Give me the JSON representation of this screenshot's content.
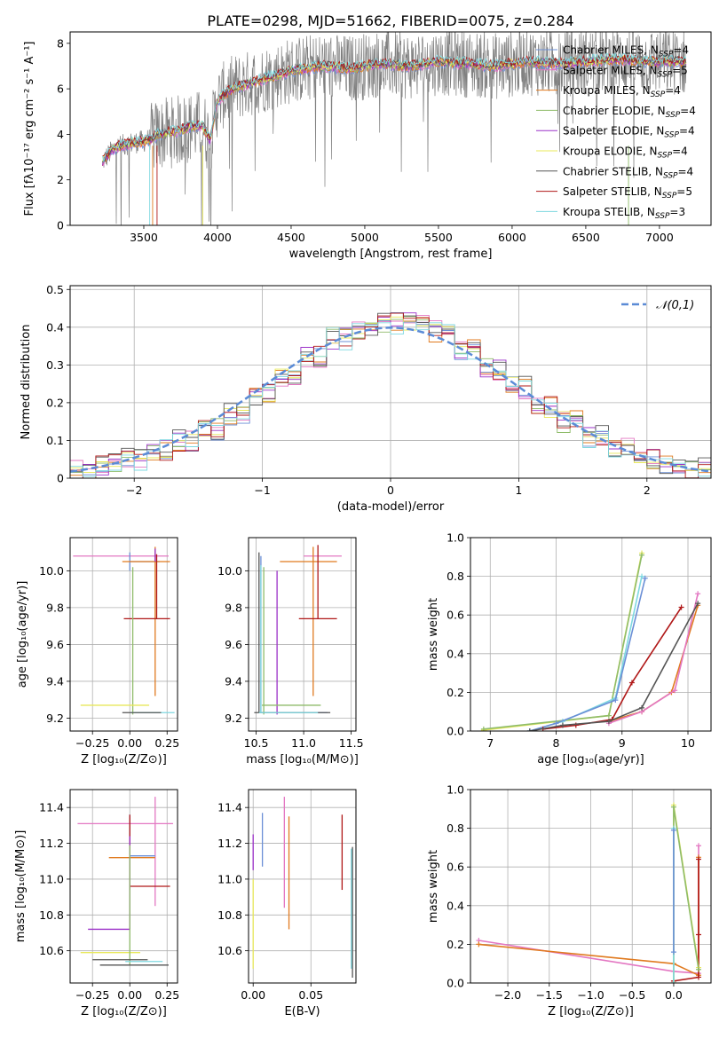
{
  "figure": {
    "title": "PLATE=0298, MJD=51662, FIBERID=0075, z=0.284"
  },
  "series_styles": [
    {
      "name": "Chabrier MILES",
      "nssp": "4",
      "color": "#6b8fd6"
    },
    {
      "name": "Salpeter MILES",
      "nssp": "5",
      "color": "#e377c2"
    },
    {
      "name": "Kroupa MILES",
      "nssp": "4",
      "color": "#e07a1f"
    },
    {
      "name": "Chabrier ELODIE",
      "nssp": "4",
      "color": "#8fbc6a"
    },
    {
      "name": "Salpeter ELODIE",
      "nssp": "4",
      "color": "#9b30c8"
    },
    {
      "name": "Kroupa ELODIE",
      "nssp": "4",
      "color": "#e8e85a"
    },
    {
      "name": "Chabrier STELIB",
      "nssp": "4",
      "color": "#555555"
    },
    {
      "name": "Salpeter STELIB",
      "nssp": "5",
      "color": "#b01818"
    },
    {
      "name": "Kroupa STELIB",
      "nssp": "3",
      "color": "#7fd8e0"
    }
  ],
  "chart_data": [
    {
      "id": "spectrum",
      "type": "line",
      "xlabel": "wavelength [Angstrom, rest frame]",
      "ylabel": "Flux [fλ10⁻¹⁷ erg cm⁻² s⁻¹ A⁻¹]",
      "xlim": [
        3000,
        7350
      ],
      "ylim": [
        0,
        8.5
      ],
      "xticks": [
        3500,
        4000,
        4500,
        5000,
        5500,
        6000,
        6500,
        7000
      ],
      "yticks": [
        0,
        2,
        4,
        6,
        8
      ],
      "data_color": "#808080",
      "model_continuum": {
        "x": [
          3220,
          3300,
          3400,
          3500,
          3550,
          3600,
          3700,
          3800,
          3900,
          3950,
          4000,
          4100,
          4200,
          4300,
          4400,
          4500,
          4700,
          4900,
          5100,
          5300,
          5500,
          5700,
          5900,
          6100,
          6300,
          6500,
          6700,
          6900,
          7100
        ],
        "y": [
          2.8,
          3.4,
          3.6,
          3.7,
          3.8,
          4.0,
          4.1,
          4.3,
          4.4,
          3.7,
          5.5,
          6.0,
          6.2,
          6.4,
          6.6,
          6.8,
          7.0,
          6.9,
          7.1,
          7.0,
          7.2,
          7.1,
          7.0,
          7.2,
          7.1,
          7.2,
          7.3,
          7.2,
          7.2
        ]
      }
    },
    {
      "id": "residuals",
      "type": "step",
      "xlabel": "(data-model)/error",
      "ylabel": "Normed distribution",
      "xlim": [
        -2.5,
        2.5
      ],
      "ylim": [
        0,
        0.51
      ],
      "xticks": [
        -2,
        -1,
        0,
        1,
        2
      ],
      "yticks": [
        0.0,
        0.1,
        0.2,
        0.3,
        0.4,
        0.5
      ],
      "grid": true,
      "bin_centers": [
        -2.4,
        -2.2,
        -2.0,
        -1.8,
        -1.6,
        -1.4,
        -1.2,
        -1.0,
        -0.8,
        -0.6,
        -0.4,
        -0.2,
        0.0,
        0.2,
        0.4,
        0.6,
        0.8,
        1.0,
        1.2,
        1.4,
        1.6,
        1.8,
        2.0,
        2.2,
        2.4
      ],
      "base_values": [
        0.02,
        0.035,
        0.05,
        0.075,
        0.1,
        0.13,
        0.17,
        0.22,
        0.27,
        0.32,
        0.37,
        0.39,
        0.41,
        0.42,
        0.39,
        0.34,
        0.29,
        0.24,
        0.19,
        0.15,
        0.11,
        0.08,
        0.05,
        0.035,
        0.025
      ],
      "normal_curve": {
        "label": "𝒩(0,1)",
        "color": "#5b8bd6"
      }
    },
    {
      "id": "z-age",
      "type": "errorbar",
      "xlabel": "Z [log₁₀(Z/Z⊙)]",
      "ylabel": "age  [log₁₀(age/yr)]",
      "xlim": [
        -0.4,
        0.32
      ],
      "ylim": [
        9.13,
        10.18
      ],
      "xticks": [
        -0.25,
        0.0,
        0.25
      ],
      "xticklabels": [
        "−0.25",
        "0.00",
        "0.25"
      ],
      "yticks": [
        9.2,
        9.4,
        9.6,
        9.8,
        10.0
      ],
      "yticklabels": [
        "9.2",
        "9.4",
        "9.6",
        "9.8",
        "10.0"
      ],
      "points": [
        {
          "s": 1,
          "x": 0.0,
          "y": 10.08,
          "xe": [
            0.38,
            0.26
          ],
          "ye": [
            0,
            0
          ]
        },
        {
          "s": 0,
          "x": 0.0,
          "y": 10.05,
          "xe": [
            0.0,
            0.2
          ],
          "ye": [
            0.05,
            0.05
          ]
        },
        {
          "s": 2,
          "x": 0.17,
          "y": 10.05,
          "xe": [
            0.22,
            0.1
          ],
          "ye": [
            0.73,
            0.08
          ]
        },
        {
          "s": 4,
          "x": 0.17,
          "y": 10.05,
          "xe": [
            0.0,
            0.0
          ],
          "ye": [
            0.0,
            0.07
          ]
        },
        {
          "s": 7,
          "x": 0.18,
          "y": 9.74,
          "xe": [
            0.22,
            0.09
          ],
          "ye": [
            0.0,
            0.35
          ]
        },
        {
          "s": 3,
          "x": 0.02,
          "y": 9.27,
          "xe": [
            0.0,
            0.0
          ],
          "ye": [
            0.05,
            0.75
          ]
        },
        {
          "s": 8,
          "x": 0.03,
          "y": 9.23,
          "xe": [
            0.03,
            0.27
          ],
          "ye": [
            0.0,
            0.0
          ]
        },
        {
          "s": 5,
          "x": -0.05,
          "y": 9.27,
          "xe": [
            0.28,
            0.18
          ],
          "ye": [
            0.0,
            0.0
          ]
        },
        {
          "s": 6,
          "x": -0.05,
          "y": 9.23,
          "xe": [
            0.0,
            0.26
          ],
          "ye": [
            0.0,
            0.0
          ]
        }
      ]
    },
    {
      "id": "mass-age",
      "type": "errorbar",
      "xlabel": "mass [log₁₀(M/M⊙)]",
      "ylabel": "",
      "xlim": [
        10.42,
        11.55
      ],
      "ylim": [
        9.13,
        10.18
      ],
      "xticks": [
        10.5,
        11.0,
        11.5
      ],
      "xticklabels": [
        "10.5",
        "11.0",
        "11.5"
      ],
      "yticks": [
        9.2,
        9.4,
        9.6,
        9.8,
        10.0
      ],
      "yticklabels": [
        "9.2",
        "9.4",
        "9.6",
        "9.8",
        "10.0"
      ],
      "points": [
        {
          "s": 1,
          "x": 11.3,
          "y": 10.08,
          "xe": [
            0.3,
            0.1
          ],
          "ye": [
            0.0,
            0.0
          ]
        },
        {
          "s": 2,
          "x": 11.1,
          "y": 10.05,
          "xe": [
            0.35,
            0.25
          ],
          "ye": [
            0.73,
            0.08
          ]
        },
        {
          "s": 7,
          "x": 11.15,
          "y": 9.74,
          "xe": [
            0.2,
            0.2
          ],
          "ye": [
            0.0,
            0.4
          ]
        },
        {
          "s": 4,
          "x": 10.72,
          "y": 10.0,
          "xe": [
            0.0,
            0.0
          ],
          "ye": [
            0.78,
            0.0
          ]
        },
        {
          "s": 3,
          "x": 10.58,
          "y": 9.27,
          "xe": [
            0.02,
            0.6
          ],
          "ye": [
            0.05,
            0.75
          ]
        },
        {
          "s": 0,
          "x": 10.55,
          "y": 9.23,
          "xe": [
            0.0,
            0.7
          ],
          "ye": [
            0.0,
            0.85
          ]
        },
        {
          "s": 6,
          "x": 10.53,
          "y": 9.23,
          "xe": [
            0.05,
            0.75
          ],
          "ye": [
            0.0,
            0.87
          ]
        },
        {
          "s": 8,
          "x": 10.55,
          "y": 9.23,
          "xe": [
            0.02,
            0.6
          ],
          "ye": [
            0.0,
            0.8
          ]
        }
      ]
    },
    {
      "id": "age-weight",
      "type": "line",
      "xlabel": "age  [log₁₀(age/yr)]",
      "ylabel": "mass weight",
      "xlim": [
        6.7,
        10.35
      ],
      "ylim": [
        0,
        1.0
      ],
      "xticks": [
        7,
        8,
        9,
        10
      ],
      "xticklabels": [
        "7",
        "8",
        "9",
        "10"
      ],
      "yticks": [
        0.0,
        0.2,
        0.4,
        0.6,
        0.8,
        1.0
      ],
      "yticklabels": [
        "0.0",
        "0.2",
        "0.4",
        "0.6",
        "0.8",
        "1.0"
      ],
      "grid": true,
      "lines": [
        {
          "s": 5,
          "x": [
            6.9,
            8.8,
            9.3
          ],
          "y": [
            0.005,
            0.08,
            0.92
          ]
        },
        {
          "s": 3,
          "x": [
            6.9,
            8.8,
            9.3
          ],
          "y": [
            0.01,
            0.08,
            0.91
          ]
        },
        {
          "s": 8,
          "x": [
            7.6,
            8.1,
            8.9,
            9.3
          ],
          "y": [
            0.0,
            0.05,
            0.17,
            0.8
          ]
        },
        {
          "s": 0,
          "x": [
            7.6,
            8.0,
            8.9,
            9.35
          ],
          "y": [
            0.0,
            0.04,
            0.16,
            0.79
          ]
        },
        {
          "s": 7,
          "x": [
            7.8,
            8.3,
            8.85,
            9.15,
            9.9
          ],
          "y": [
            0.01,
            0.03,
            0.06,
            0.25,
            0.64
          ]
        },
        {
          "s": 2,
          "x": [
            8.8,
            9.3,
            9.75,
            10.15
          ],
          "y": [
            0.05,
            0.1,
            0.2,
            0.65
          ]
        },
        {
          "s": 1,
          "x": [
            8.8,
            9.3,
            9.8,
            10.15
          ],
          "y": [
            0.04,
            0.1,
            0.21,
            0.71
          ]
        },
        {
          "s": 6,
          "x": [
            7.6,
            8.1,
            8.8,
            9.3,
            10.15
          ],
          "y": [
            0.0,
            0.03,
            0.05,
            0.12,
            0.66
          ]
        }
      ]
    },
    {
      "id": "z-mass",
      "type": "errorbar",
      "xlabel": "Z [log₁₀(Z/Z⊙)]",
      "ylabel": "mass [log₁₀(M/M⊙)]",
      "xlim": [
        -0.4,
        0.32
      ],
      "ylim": [
        10.42,
        11.5
      ],
      "xticks": [
        -0.25,
        0.0,
        0.25
      ],
      "xticklabels": [
        "−0.25",
        "0.00",
        "0.25"
      ],
      "yticks": [
        10.6,
        10.8,
        11.0,
        11.2,
        11.4
      ],
      "yticklabels": [
        "10.6",
        "10.8",
        "11.0",
        "11.2",
        "11.4"
      ],
      "points": [
        {
          "s": 1,
          "x": 0.17,
          "y": 11.31,
          "xe": [
            0.52,
            0.12
          ],
          "ye": [
            0.46,
            0.15
          ]
        },
        {
          "s": 2,
          "x": 0.0,
          "y": 11.12,
          "xe": [
            0.14,
            0.17
          ],
          "ye": [
            0.0,
            0.22
          ]
        },
        {
          "s": 0,
          "x": 0.0,
          "y": 11.13,
          "xe": [
            0.0,
            0.17
          ],
          "ye": [
            0.15,
            0.23
          ]
        },
        {
          "s": 7,
          "x": 0.0,
          "y": 10.96,
          "xe": [
            0.0,
            0.27
          ],
          "ye": [
            0.02,
            0.4
          ]
        },
        {
          "s": 4,
          "x": 0.0,
          "y": 10.72,
          "xe": [
            0.28,
            0.0
          ],
          "ye": [
            0.0,
            0.52
          ]
        },
        {
          "s": 5,
          "x": -0.05,
          "y": 10.59,
          "xe": [
            0.28,
            0.12
          ],
          "ye": [
            0.0,
            0.0
          ]
        },
        {
          "s": 3,
          "x": 0.0,
          "y": 10.59,
          "xe": [
            0.0,
            0.0
          ],
          "ye": [
            0.07,
            0.6
          ]
        },
        {
          "s": 6,
          "x": -0.05,
          "y": 10.55,
          "xe": [
            0.2,
            0.17
          ],
          "ye": [
            0.0,
            0.0
          ]
        },
        {
          "s": 8,
          "x": 0.02,
          "y": 10.54,
          "xe": [
            0.05,
            0.2
          ],
          "ye": [
            0.0,
            0.0
          ]
        },
        {
          "s": 6,
          "x": 0.02,
          "y": 10.52,
          "xe": [
            0.22,
            0.24
          ],
          "ye": [
            0.0,
            0.0
          ]
        }
      ]
    },
    {
      "id": "ebv-mass",
      "type": "errorbar",
      "xlabel": "E(B-V)",
      "ylabel": "",
      "xlim": [
        -0.004,
        0.089
      ],
      "ylim": [
        10.42,
        11.5
      ],
      "xticks": [
        0.0,
        0.05
      ],
      "xticklabels": [
        "0.00",
        "0.05"
      ],
      "yticks": [
        10.6,
        10.8,
        11.0,
        11.2,
        11.4
      ],
      "yticklabels": [
        "10.6",
        "10.8",
        "11.0",
        "11.2",
        "11.4"
      ],
      "points": [
        {
          "s": 4,
          "x": 0.0,
          "y": 11.05,
          "xe": [
            0,
            0
          ],
          "ye": [
            0.0,
            0.2
          ]
        },
        {
          "s": 5,
          "x": 0.0,
          "y": 10.8,
          "xe": [
            0,
            0
          ],
          "ye": [
            0.3,
            0.2
          ]
        },
        {
          "s": 0,
          "x": 0.008,
          "y": 11.2,
          "xe": [
            0,
            0
          ],
          "ye": [
            0.13,
            0.17
          ]
        },
        {
          "s": 1,
          "x": 0.027,
          "y": 11.1,
          "xe": [
            0,
            0
          ],
          "ye": [
            0.26,
            0.36
          ]
        },
        {
          "s": 2,
          "x": 0.031,
          "y": 11.0,
          "xe": [
            0,
            0
          ],
          "ye": [
            0.28,
            0.35
          ]
        },
        {
          "s": 7,
          "x": 0.077,
          "y": 11.1,
          "xe": [
            0,
            0
          ],
          "ye": [
            0.16,
            0.26
          ]
        },
        {
          "s": 6,
          "x": 0.086,
          "y": 10.8,
          "xe": [
            0,
            0
          ],
          "ye": [
            0.35,
            0.38
          ]
        },
        {
          "s": 8,
          "x": 0.085,
          "y": 10.8,
          "xe": [
            0,
            0
          ],
          "ye": [
            0.3,
            0.37
          ]
        }
      ]
    },
    {
      "id": "z-weight",
      "type": "line",
      "xlabel": "Z [log₁₀(Z/Z⊙)]",
      "ylabel": "mass weight",
      "xlim": [
        -2.45,
        0.45
      ],
      "ylim": [
        0,
        1.0
      ],
      "xticks": [
        -2.0,
        -1.5,
        -1.0,
        -0.5,
        0.0
      ],
      "xticklabels": [
        "−2.0",
        "−1.5",
        "−1.0",
        "−0.5",
        "0.0"
      ],
      "yticks": [
        0.0,
        0.2,
        0.4,
        0.6,
        0.8,
        1.0
      ],
      "yticklabels": [
        "0.0",
        "0.2",
        "0.4",
        "0.6",
        "0.8",
        "1.0"
      ],
      "grid": true,
      "lines": [
        {
          "s": 1,
          "x": [
            -2.35,
            0.0,
            0.3,
            0.3
          ],
          "y": [
            0.22,
            0.06,
            0.05,
            0.71
          ]
        },
        {
          "s": 2,
          "x": [
            -2.35,
            0.0,
            0.3,
            0.3
          ],
          "y": [
            0.2,
            0.1,
            0.04,
            0.65
          ]
        },
        {
          "s": 7,
          "x": [
            0.0,
            0.0,
            0.3,
            0.3,
            0.3
          ],
          "y": [
            0.01,
            0.01,
            0.03,
            0.25,
            0.64
          ]
        },
        {
          "s": 5,
          "x": [
            0.0,
            0.0,
            0.3
          ],
          "y": [
            0.0,
            0.92,
            0.08
          ]
        },
        {
          "s": 3,
          "x": [
            0.0,
            0.0,
            0.3
          ],
          "y": [
            0.0,
            0.91,
            0.07
          ]
        },
        {
          "s": 8,
          "x": [
            0.0,
            0.0
          ],
          "y": [
            0.0,
            0.8
          ]
        },
        {
          "s": 0,
          "x": [
            0.0,
            0.0
          ],
          "y": [
            0.16,
            0.79
          ]
        }
      ]
    }
  ]
}
